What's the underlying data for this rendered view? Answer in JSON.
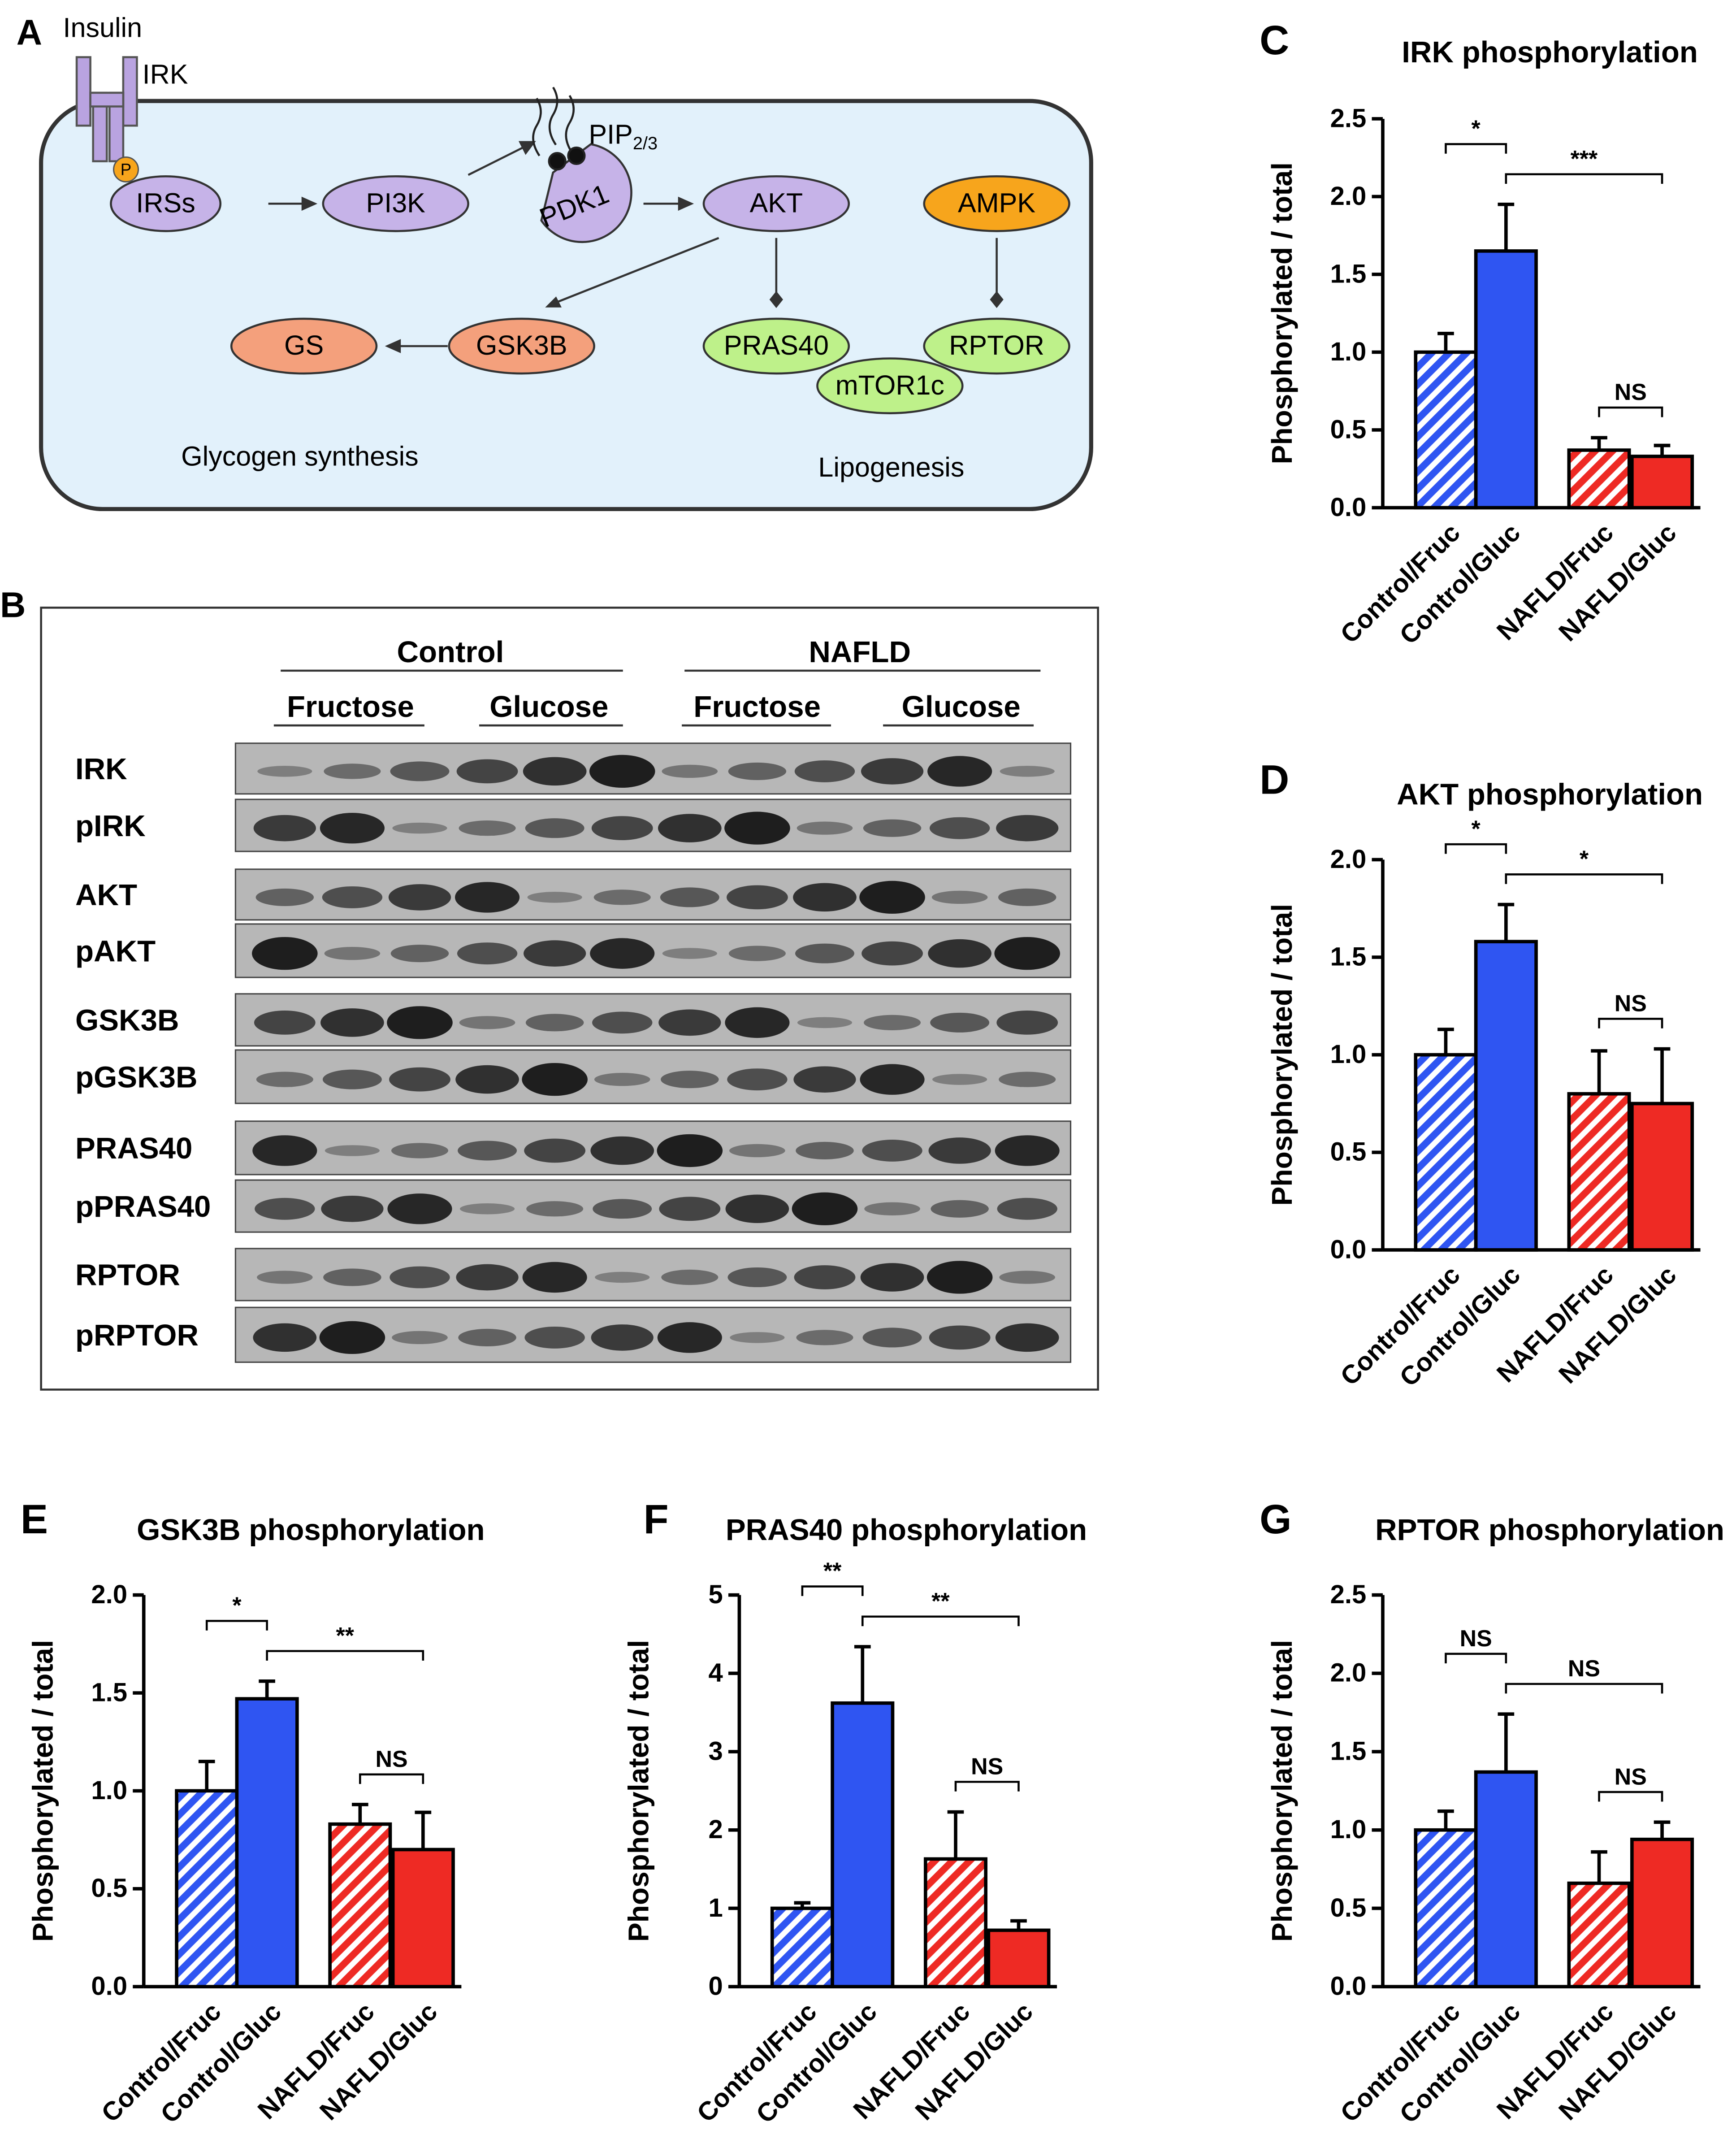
{
  "diagram": {
    "panel": "A",
    "insulin": "Insulin",
    "receptor": "IRK",
    "phospho": "P",
    "pip": "PIP",
    "pip_sub": "2/3",
    "nodes": [
      "IRSs",
      "PI3K",
      "PDK1",
      "AKT",
      "AMPK",
      "GS",
      "GSK3B",
      "PRAS40",
      "mTOR1c",
      "RPTOR"
    ],
    "processes": [
      "Glycogen synthesis",
      "Lipogenesis"
    ]
  },
  "blot": {
    "panel": "B",
    "groups": [
      "Control",
      "NAFLD"
    ],
    "sugars": [
      "Fructose",
      "Glucose",
      "Fructose",
      "Glucose"
    ],
    "rows": [
      "IRK",
      "pIRK",
      "AKT",
      "pAKT",
      "GSK3B",
      "pGSK3B",
      "PRAS40",
      "pPRAS40",
      "RPTOR",
      "pRPTOR"
    ]
  },
  "chart_data": [
    {
      "type": "bar",
      "panel": "C",
      "title": "IRK phosphorylation",
      "y_label": "Phosphorylated / total",
      "categories": [
        "Control/Fruc",
        "Control/Gluc",
        "NAFLD/Fruc",
        "NAFLD/Gluc"
      ],
      "values": [
        1.0,
        1.65,
        0.37,
        0.33
      ],
      "errors": [
        0.12,
        0.3,
        0.08,
        0.07
      ],
      "colors": [
        "#2f55f2",
        "#2f55f2",
        "#ee2a24",
        "#ee2a24"
      ],
      "hatched": [
        true,
        false,
        true,
        false
      ],
      "ylim": [
        0,
        2.5
      ],
      "yticks": [
        {
          "value": 0,
          "label": "0.0"
        },
        0.5,
        {
          "value": 1,
          "label": "1.0"
        },
        1.5,
        {
          "value": 2,
          "label": "2.0"
        },
        2.5
      ],
      "comparisons": [
        {
          "pair": [
            1,
            3
          ],
          "label": "***"
        },
        {
          "pair": [
            0,
            1
          ],
          "label": "*"
        },
        {
          "pair": [
            2,
            3
          ],
          "label": "NS"
        }
      ]
    },
    {
      "type": "bar",
      "panel": "D",
      "title": "AKT phosphorylation",
      "y_label": "Phosphorylated / total",
      "categories": [
        "Control/Fruc",
        "Control/Gluc",
        "NAFLD/Fruc",
        "NAFLD/Gluc"
      ],
      "values": [
        1.0,
        1.58,
        0.8,
        0.75
      ],
      "errors": [
        0.13,
        0.19,
        0.22,
        0.28
      ],
      "colors": [
        "#2f55f2",
        "#2f55f2",
        "#ee2a24",
        "#ee2a24"
      ],
      "hatched": [
        true,
        false,
        true,
        false
      ],
      "ylim": [
        0,
        2.0
      ],
      "yticks": [
        {
          "value": 0,
          "label": "0.0"
        },
        0.5,
        {
          "value": 1,
          "label": "1.0"
        },
        1.5,
        {
          "value": 2,
          "label": "2.0"
        }
      ],
      "comparisons": [
        {
          "pair": [
            1,
            3
          ],
          "label": "*"
        },
        {
          "pair": [
            0,
            1
          ],
          "label": "*"
        },
        {
          "pair": [
            2,
            3
          ],
          "label": "NS"
        }
      ]
    },
    {
      "type": "bar",
      "panel": "E",
      "title": "GSK3B phosphorylation",
      "y_label": "Phosphorylated / total",
      "categories": [
        "Control/Fruc",
        "Control/Gluc",
        "NAFLD/Fruc",
        "NAFLD/Gluc"
      ],
      "values": [
        1.0,
        1.47,
        0.83,
        0.7
      ],
      "errors": [
        0.15,
        0.09,
        0.1,
        0.19
      ],
      "colors": [
        "#2f55f2",
        "#2f55f2",
        "#ee2a24",
        "#ee2a24"
      ],
      "hatched": [
        true,
        false,
        true,
        false
      ],
      "ylim": [
        0,
        2.0
      ],
      "yticks": [
        {
          "value": 0,
          "label": "0.0"
        },
        0.5,
        {
          "value": 1,
          "label": "1.0"
        },
        1.5,
        {
          "value": 2,
          "label": "2.0"
        }
      ],
      "comparisons": [
        {
          "pair": [
            1,
            3
          ],
          "label": "**"
        },
        {
          "pair": [
            0,
            1
          ],
          "label": "*"
        },
        {
          "pair": [
            2,
            3
          ],
          "label": "NS"
        }
      ]
    },
    {
      "type": "bar",
      "panel": "F",
      "title": "PRAS40 phosphorylation",
      "y_label": "Phosphorylated / total",
      "categories": [
        "Control/Fruc",
        "Control/Gluc",
        "NAFLD/Fruc",
        "NAFLD/Gluc"
      ],
      "values": [
        1.0,
        3.62,
        1.63,
        0.72
      ],
      "errors": [
        0.07,
        0.72,
        0.6,
        0.12
      ],
      "colors": [
        "#2f55f2",
        "#2f55f2",
        "#ee2a24",
        "#ee2a24"
      ],
      "hatched": [
        true,
        false,
        true,
        false
      ],
      "ylim": [
        0,
        5
      ],
      "yticks": [
        0,
        1,
        2,
        3,
        4,
        5
      ],
      "comparisons": [
        {
          "pair": [
            1,
            3
          ],
          "label": "**"
        },
        {
          "pair": [
            0,
            1
          ],
          "label": "**"
        },
        {
          "pair": [
            2,
            3
          ],
          "label": "NS"
        }
      ]
    },
    {
      "type": "bar",
      "panel": "G",
      "title": "RPTOR phosphorylation",
      "y_label": "Phosphorylated / total",
      "categories": [
        "Control/Fruc",
        "Control/Gluc",
        "NAFLD/Fruc",
        "NAFLD/Gluc"
      ],
      "values": [
        1.0,
        1.37,
        0.66,
        0.94
      ],
      "errors": [
        0.12,
        0.37,
        0.2,
        0.11
      ],
      "colors": [
        "#2f55f2",
        "#2f55f2",
        "#ee2a24",
        "#ee2a24"
      ],
      "hatched": [
        true,
        false,
        true,
        false
      ],
      "ylim": [
        0,
        2.5
      ],
      "yticks": [
        {
          "value": 0,
          "label": "0.0"
        },
        0.5,
        {
          "value": 1,
          "label": "1.0"
        },
        1.5,
        {
          "value": 2,
          "label": "2.0"
        },
        2.5
      ],
      "comparisons": [
        {
          "pair": [
            1,
            3
          ],
          "label": "NS"
        },
        {
          "pair": [
            0,
            1
          ],
          "label": "NS"
        },
        {
          "pair": [
            2,
            3
          ],
          "label": "NS"
        }
      ]
    }
  ]
}
